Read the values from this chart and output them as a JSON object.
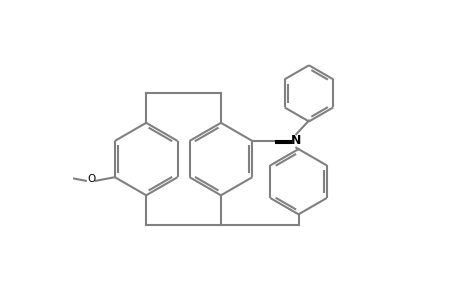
{
  "bg_color": "#ffffff",
  "line_color": "#808080",
  "bond_color": "#000000",
  "line_width": 1.5,
  "fig_width": 4.6,
  "fig_height": 3.0,
  "dpi": 100,
  "xlim": [
    0,
    10
  ],
  "ylim": [
    0,
    6.5
  ]
}
